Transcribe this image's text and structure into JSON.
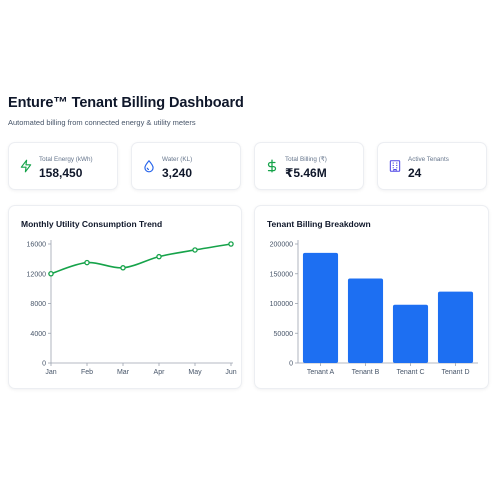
{
  "header": {
    "title": "Enture™ Tenant Billing Dashboard",
    "subtitle": "Automated billing from connected energy & utility meters"
  },
  "stats": [
    {
      "icon": "lightning-bolt-icon",
      "label": "Total Energy (kWh)",
      "value": "158,450",
      "color": "#16a34a"
    },
    {
      "icon": "water-drop-icon",
      "label": "Water (KL)",
      "value": "3,240",
      "color": "#2563eb"
    },
    {
      "icon": "dollar-sign-icon",
      "label": "Total Billing (₹)",
      "value": "₹5.46M",
      "color": "#16a34a"
    },
    {
      "icon": "building-icon",
      "label": "Active Tenants",
      "value": "24",
      "color": "#4f46e5"
    }
  ],
  "panels": {
    "trend_title": "Monthly Utility Consumption Trend",
    "billing_title": "Tenant Billing Breakdown"
  },
  "chart_data": [
    {
      "type": "line",
      "title": "Monthly Utility Consumption Trend",
      "categories": [
        "Jan",
        "Feb",
        "Mar",
        "Apr",
        "May",
        "Jun"
      ],
      "series": [
        {
          "values": [
            12000,
            13500,
            12800,
            14300,
            15200,
            16000
          ]
        }
      ],
      "yticks": [
        0,
        4000,
        8000,
        12000,
        16000
      ],
      "ylim": [
        0,
        16000
      ],
      "color": "#16a34a",
      "grid": false
    },
    {
      "type": "bar",
      "title": "Tenant Billing Breakdown",
      "categories": [
        "Tenant A",
        "Tenant B",
        "Tenant C",
        "Tenant D"
      ],
      "values": [
        185000,
        142000,
        98000,
        120000
      ],
      "yticks": [
        0,
        50000,
        100000,
        150000,
        200000
      ],
      "ylim": [
        0,
        200000
      ],
      "color": "#1d6ff2",
      "grid": false
    }
  ]
}
